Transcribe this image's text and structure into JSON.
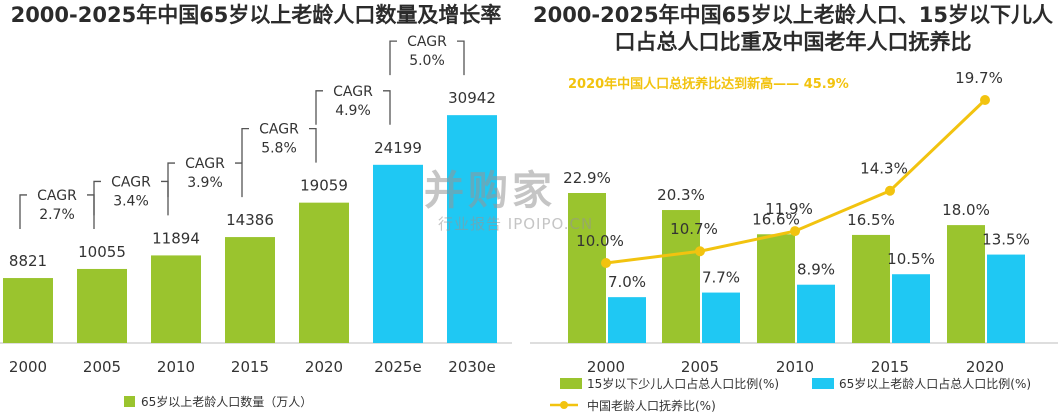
{
  "colors": {
    "green": "#9ac42e",
    "blue": "#1fc8f3",
    "gold": "#f2c30f",
    "text": "#333333",
    "bracket": "#555555"
  },
  "chart_data": [
    {
      "type": "bar",
      "title": "2000-2025年中国65岁以上老龄人口数量及增长率",
      "categories": [
        "2000",
        "2005",
        "2010",
        "2015",
        "2020",
        "2025e",
        "2030e"
      ],
      "series": [
        {
          "name": "65岁以上老龄人口数量（万人）",
          "values": [
            8821,
            10055,
            11894,
            14386,
            19059,
            24199,
            30942
          ]
        }
      ],
      "bar_colors": [
        "green",
        "green",
        "green",
        "green",
        "green",
        "blue",
        "blue"
      ],
      "cagr_label": "CAGR",
      "cagr": [
        "2.7%",
        "3.4%",
        "3.9%",
        "5.8%",
        "4.9%",
        "5.0%"
      ],
      "ylim": [
        0,
        33000
      ]
    },
    {
      "type": "bar+line",
      "title": "2000-2025年中国65岁以上老龄人口、15岁以下儿人口占总人口比重及中国老年人口抚养比",
      "categories": [
        "2000",
        "2005",
        "2010",
        "2015",
        "2020"
      ],
      "series": [
        {
          "name": "15岁以下少儿人口占总人口比例(%)",
          "type": "bar",
          "values": [
            22.9,
            20.3,
            16.6,
            16.5,
            18.0
          ],
          "labels": [
            "22.9%",
            "20.3%",
            "16.6%",
            "16.5%",
            "18.0%"
          ]
        },
        {
          "name": "65岁以上老龄人口占总人口比例(%)",
          "type": "bar",
          "values": [
            7.0,
            7.7,
            8.9,
            10.5,
            13.5
          ],
          "labels": [
            "7.0%",
            "7.7%",
            "8.9%",
            "10.5%",
            "13.5%"
          ]
        },
        {
          "name": "中国老龄人口抚养比(%)",
          "type": "line",
          "values": [
            10.0,
            10.7,
            11.9,
            14.3,
            19.7
          ],
          "labels": [
            "10.0%",
            "10.7%",
            "11.9%",
            "14.3%",
            "19.7%"
          ]
        }
      ],
      "annotation": "2020年中国人口总抚养比达到新高—— 45.9%"
    }
  ],
  "watermark": {
    "brand": "并购家",
    "sub": "行业报告 IPOIPO.CN"
  }
}
